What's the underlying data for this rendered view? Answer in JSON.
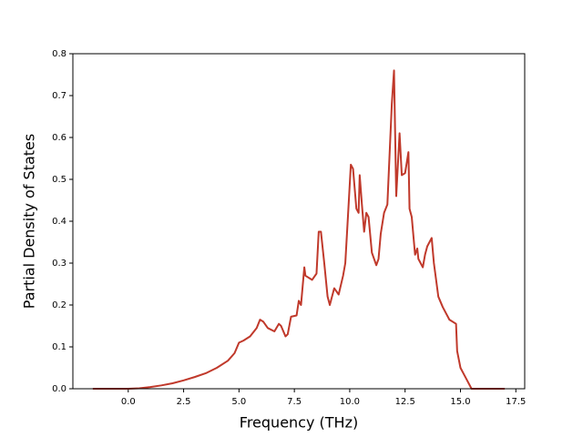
{
  "chart_data": {
    "type": "line",
    "x_label": "Frequency (THz)",
    "y_label": "Partial Density of States",
    "xlim": [
      -2.5,
      17.9
    ],
    "ylim": [
      0,
      0.8
    ],
    "xticks": [
      {
        "value": 0,
        "label": "0.0"
      },
      2.5,
      {
        "value": 5,
        "label": "5.0"
      },
      7.5,
      {
        "value": 10,
        "label": "10.0"
      },
      12.5,
      {
        "value": 15,
        "label": "15.0"
      },
      17.5
    ],
    "yticks": [
      {
        "value": 0,
        "label": "0.0"
      },
      0.1,
      0.2,
      0.3,
      0.4,
      0.5,
      0.6,
      0.7,
      0.8
    ],
    "x": [
      -1.6,
      0,
      0.5,
      1,
      1.5,
      2,
      2.5,
      3,
      3.5,
      4,
      4.5,
      4.8,
      5.0,
      5.2,
      5.5,
      5.8,
      5.95,
      6.1,
      6.3,
      6.6,
      6.8,
      6.9,
      7.1,
      7.2,
      7.35,
      7.6,
      7.7,
      7.8,
      7.95,
      8.0,
      8.3,
      8.5,
      8.6,
      8.7,
      8.85,
      9.0,
      9.1,
      9.3,
      9.5,
      9.7,
      9.8,
      9.95,
      10.05,
      10.15,
      10.3,
      10.4,
      10.45,
      10.55,
      10.65,
      10.75,
      10.85,
      11.0,
      11.2,
      11.3,
      11.4,
      11.55,
      11.7,
      11.9,
      12.0,
      12.1,
      12.25,
      12.35,
      12.5,
      12.65,
      12.7,
      12.8,
      12.95,
      13.05,
      13.1,
      13.3,
      13.4,
      13.5,
      13.7,
      13.8,
      14.0,
      14.2,
      14.5,
      14.8,
      14.85,
      15.0,
      15.2,
      15.5,
      17.0
    ],
    "series": [
      {
        "color": "#c0392b",
        "values": [
          0,
          0,
          0.001,
          0.004,
          0.008,
          0.013,
          0.02,
          0.028,
          0.037,
          0.05,
          0.067,
          0.085,
          0.11,
          0.115,
          0.125,
          0.145,
          0.165,
          0.16,
          0.145,
          0.137,
          0.155,
          0.15,
          0.125,
          0.13,
          0.172,
          0.175,
          0.21,
          0.2,
          0.29,
          0.27,
          0.26,
          0.275,
          0.375,
          0.375,
          0.3,
          0.22,
          0.2,
          0.24,
          0.225,
          0.27,
          0.3,
          0.44,
          0.535,
          0.525,
          0.43,
          0.42,
          0.51,
          0.44,
          0.375,
          0.42,
          0.41,
          0.325,
          0.295,
          0.31,
          0.37,
          0.42,
          0.44,
          0.68,
          0.76,
          0.46,
          0.61,
          0.51,
          0.515,
          0.565,
          0.43,
          0.41,
          0.32,
          0.335,
          0.31,
          0.29,
          0.32,
          0.34,
          0.36,
          0.3,
          0.22,
          0.195,
          0.165,
          0.155,
          0.09,
          0.05,
          0.03,
          0,
          0
        ]
      }
    ]
  }
}
